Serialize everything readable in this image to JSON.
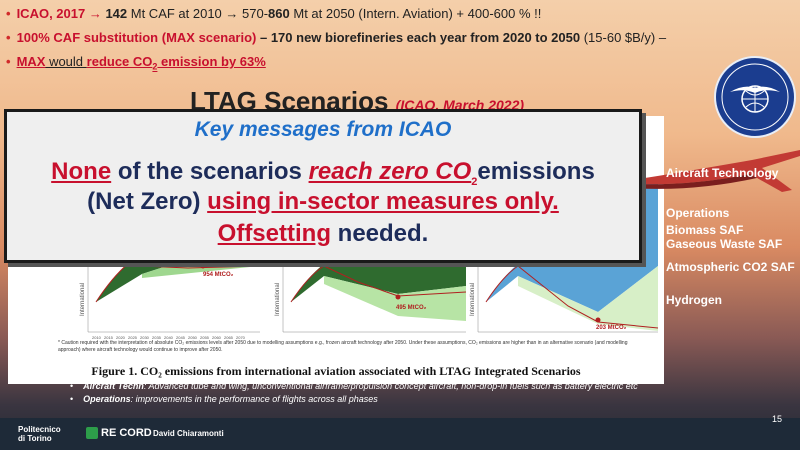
{
  "bullets": {
    "b1": {
      "p1": "ICAO, 2017 → ",
      "p2": "142",
      "p3": " Mt CAF at 2010 → 570-",
      "p4": "860",
      "p5": " Mt at 2050 (Intern. Aviation) + 400-600 % !!"
    },
    "b2": {
      "p1": "100% CAF substitution (MAX scenario)",
      "p2": " – 170 new biorefineries each year from ",
      "p3": "2020 to 2050",
      "p4": " (15-60 $B/y) –"
    },
    "b3": {
      "p1": "MAX",
      "p2": " would ",
      "p3": "reduce CO",
      "p4": "2",
      "p5": " emission by 63%"
    }
  },
  "ltag": {
    "title": "LTAG Scenarios",
    "subtitle": "(ICAO, March 2022)"
  },
  "callout": {
    "title": "Key messages from ICAO",
    "l1": {
      "a": "None",
      "b": " of the scenarios ",
      "c": "reach zero CO",
      "d": "2",
      "e": "emissions"
    },
    "l2": {
      "a": "(Net Zero) ",
      "b": "using in-sector measures only."
    },
    "l3": {
      "a": "Offsetting",
      "b": " needed."
    }
  },
  "figure": {
    "annotations": [
      "954 MtCO₂",
      "495 MtCO₂",
      "203 MtCO₂"
    ],
    "ylabel": "International",
    "x_ticks": [
      "2010",
      "2015",
      "2020",
      "2025",
      "2030",
      "2035",
      "2040",
      "2045",
      "2050",
      "2055",
      "2060",
      "2065",
      "2070"
    ],
    "note": "* Caution required with the interpretation of absolute CO₂ emissions levels after 2050 due to modelling assumptions e.g., frozen aircraft technology after 2050. Under these assumptions, CO₂ emissions are higher than in an alternative scenario (and modelling approach) where aircraft technology would continue to improve after 2050.",
    "caption": "Figure 1. CO₂ emissions from international aviation associated with LTAG Integrated Scenarios"
  },
  "legend": {
    "aircraft": "Aircraft Technology",
    "operations": "Operations",
    "biomass": "Biomass SAF",
    "gaseous": "Gaseous Waste SAF",
    "atmospheric": "Atmospheric CO2 SAF",
    "hydrogen": "Hydrogen"
  },
  "definitions": {
    "d1": {
      "term": "Aircraft Techn",
      "text": ": Advanced tube and wing, unconventional airframe/propulsion concept aircraft, non-drop-in fuels such as battery electric etc"
    },
    "d2": {
      "term": "Operations",
      "text": ": improvements in the performance of flights across all phases"
    }
  },
  "footer": {
    "polito1": "Politecnico",
    "polito2": "di Torino",
    "record": "RE CORD",
    "author": "David Chiaramonti",
    "page": "15"
  },
  "colors": {
    "accent_red": "#c8102e",
    "callout_blue": "#1f6fc9",
    "navy": "#1d2c5a"
  }
}
